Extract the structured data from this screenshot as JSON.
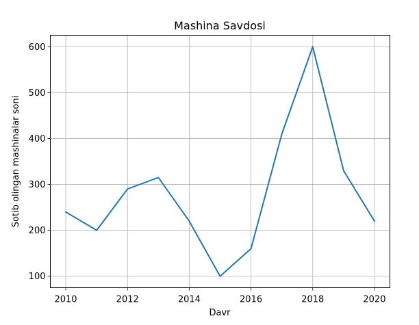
{
  "chart_data": {
    "type": "line",
    "title": "Mashina Savdosi",
    "xlabel": "Davr",
    "ylabel": "Sotib olingan mashinalar soni",
    "x": [
      2010,
      2011,
      2012,
      2013,
      2014,
      2015,
      2016,
      2017,
      2018,
      2019,
      2020
    ],
    "series": [
      {
        "values": [
          240,
          200,
          290,
          315,
          220,
          100,
          160,
          410,
          600,
          330,
          220
        ]
      }
    ],
    "xticks": [
      2010,
      2012,
      2014,
      2016,
      2018,
      2020
    ],
    "yticks": [
      100,
      200,
      300,
      400,
      500,
      600
    ],
    "xlim": [
      2009.5,
      2020.5
    ],
    "ylim": [
      75,
      625
    ],
    "grid": true,
    "line_color": "#1f77b4"
  }
}
